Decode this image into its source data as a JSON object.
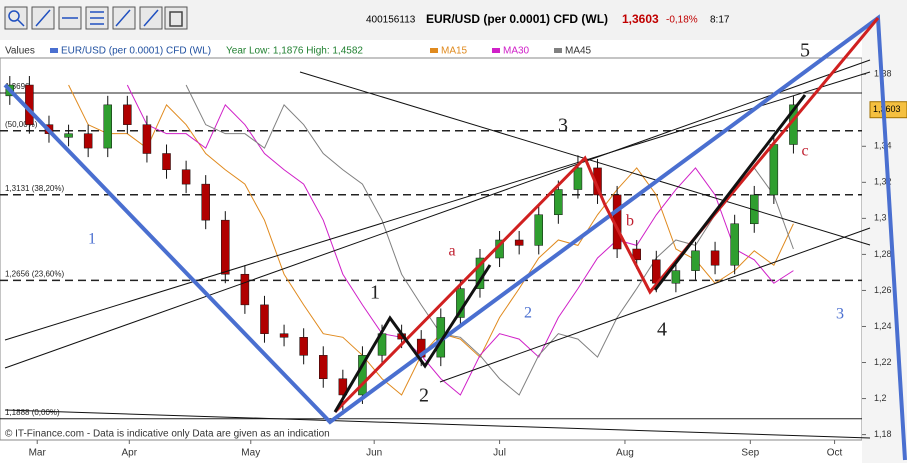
{
  "header": {
    "id": "400156113",
    "instrument": "EUR/USD (per 0.0001) CFD (WL)",
    "price": "1,3603",
    "change": "-0,18%",
    "time": "8:17"
  },
  "chart_data": {
    "type": "candlestick",
    "legend_title": "Values",
    "name": "EUR/USD (per 0.0001) CFD (WL)",
    "year_range": "Year Low: 1,1876 High: 1,4582",
    "footer": "© IT-Finance.com - Data is indicative only Data are given as an indication",
    "up_color": "#2f9e2f",
    "down_color": "#b00000",
    "open": [
      1.368,
      1.374,
      1.352,
      1.345,
      1.347,
      1.339,
      1.363,
      1.352,
      1.336,
      1.327,
      1.319,
      1.299,
      1.269,
      1.252,
      1.236,
      1.234,
      1.224,
      1.211,
      1.202,
      1.224,
      1.236,
      1.233,
      1.223,
      1.245,
      1.261,
      1.278,
      1.288,
      1.285,
      1.302,
      1.316,
      1.328,
      1.313,
      1.283,
      1.277,
      1.264,
      1.271,
      1.282,
      1.274,
      1.297,
      1.313,
      1.341
    ],
    "high": [
      1.379,
      1.379,
      1.357,
      1.352,
      1.352,
      1.368,
      1.368,
      1.357,
      1.341,
      1.332,
      1.324,
      1.304,
      1.274,
      1.257,
      1.241,
      1.239,
      1.229,
      1.216,
      1.229,
      1.241,
      1.241,
      1.238,
      1.25,
      1.266,
      1.283,
      1.293,
      1.293,
      1.307,
      1.321,
      1.335,
      1.333,
      1.318,
      1.288,
      1.282,
      1.276,
      1.287,
      1.287,
      1.302,
      1.318,
      1.346,
      1.368
    ],
    "low": [
      1.363,
      1.347,
      1.342,
      1.34,
      1.334,
      1.334,
      1.347,
      1.331,
      1.322,
      1.314,
      1.294,
      1.264,
      1.247,
      1.231,
      1.229,
      1.219,
      1.206,
      1.191,
      1.197,
      1.219,
      1.228,
      1.218,
      1.218,
      1.24,
      1.256,
      1.273,
      1.28,
      1.28,
      1.297,
      1.311,
      1.308,
      1.278,
      1.272,
      1.259,
      1.259,
      1.266,
      1.269,
      1.269,
      1.292,
      1.308,
      1.336
    ],
    "close": [
      1.374,
      1.352,
      1.347,
      1.347,
      1.339,
      1.363,
      1.352,
      1.336,
      1.327,
      1.319,
      1.299,
      1.269,
      1.252,
      1.236,
      1.234,
      1.224,
      1.211,
      1.202,
      1.224,
      1.236,
      1.233,
      1.223,
      1.245,
      1.261,
      1.278,
      1.288,
      1.285,
      1.302,
      1.316,
      1.328,
      1.313,
      1.283,
      1.277,
      1.264,
      1.271,
      1.282,
      1.274,
      1.297,
      1.313,
      1.341,
      1.363
    ],
    "series": [
      {
        "name": "MA15",
        "color": "#e08a1e",
        "values": [
          null,
          null,
          null,
          1.374,
          1.352,
          1.347,
          1.347,
          1.339,
          1.363,
          1.352,
          1.336,
          1.327,
          1.319,
          1.299,
          1.269,
          1.252,
          1.236,
          1.234,
          1.224,
          1.211,
          1.202,
          1.224,
          1.236,
          1.233,
          1.223,
          1.245,
          1.261,
          1.278,
          1.288,
          1.285,
          1.302,
          1.316,
          1.328,
          1.313,
          1.283,
          1.277,
          1.264,
          1.271,
          1.282,
          1.274,
          1.297
        ]
      },
      {
        "name": "MA30",
        "color": "#d020c8",
        "values": [
          null,
          null,
          null,
          null,
          null,
          null,
          1.374,
          1.352,
          1.347,
          1.347,
          1.339,
          1.363,
          1.352,
          1.336,
          1.327,
          1.319,
          1.299,
          1.269,
          1.252,
          1.236,
          1.234,
          1.224,
          1.211,
          1.202,
          1.224,
          1.236,
          1.233,
          1.223,
          1.245,
          1.261,
          1.278,
          1.288,
          1.285,
          1.302,
          1.316,
          1.328,
          1.313,
          1.283,
          1.277,
          1.264,
          1.271
        ]
      },
      {
        "name": "MA45",
        "color": "#808080",
        "values": [
          null,
          null,
          null,
          null,
          null,
          null,
          null,
          null,
          null,
          1.374,
          1.352,
          1.347,
          1.347,
          1.339,
          1.363,
          1.352,
          1.336,
          1.327,
          1.319,
          1.299,
          1.269,
          1.252,
          1.236,
          1.234,
          1.224,
          1.211,
          1.202,
          1.224,
          1.236,
          1.233,
          1.223,
          1.245,
          1.261,
          1.278,
          1.288,
          1.285,
          1.302,
          1.316,
          1.328,
          1.313,
          1.283
        ]
      }
    ],
    "xlim": [
      -0.5,
      43.5
    ],
    "xticks": [
      {
        "value": 1.4,
        "label": "Mar"
      },
      {
        "value": 6.1,
        "label": "Apr"
      },
      {
        "value": 12.3,
        "label": "May"
      },
      {
        "value": 18.6,
        "label": "Jun"
      },
      {
        "value": 25,
        "label": "Jul"
      },
      {
        "value": 31.4,
        "label": "Aug"
      },
      {
        "value": 37.8,
        "label": "Sep"
      },
      {
        "value": 42.1,
        "label": "Oct"
      }
    ],
    "ylim": [
      1.177,
      1.389
    ],
    "yticks": [
      {
        "value": 1.38,
        "label": "1,38"
      },
      {
        "value": 1.34,
        "label": "1,34"
      },
      {
        "value": 1.32,
        "label": "1,32"
      },
      {
        "value": 1.3,
        "label": "1,3"
      },
      {
        "value": 1.28,
        "label": "1,28"
      },
      {
        "value": 1.26,
        "label": "1,26"
      },
      {
        "value": 1.24,
        "label": "1,24"
      },
      {
        "value": 1.22,
        "label": "1,22"
      },
      {
        "value": 1.2,
        "label": "1,2"
      },
      {
        "value": 1.18,
        "label": "1,18"
      }
    ],
    "last": {
      "value": 1.3603,
      "label": "1,3603"
    },
    "levels": [
      {
        "value": 1.3696,
        "label": "1,3696",
        "dashed": false
      },
      {
        "value": 1.3486,
        "label": "(50,00%)",
        "dashed": true
      },
      {
        "value": 1.3131,
        "label": "1,3131 (38,20%)",
        "dashed": true
      },
      {
        "value": 1.2656,
        "label": "1,2656 (23,60%)",
        "dashed": true
      },
      {
        "value": 1.1888,
        "label": "1,1888 (0,00%)",
        "dashed": false
      }
    ],
    "annotations": [
      {
        "text": "1",
        "color": "#222222"
      },
      {
        "text": "2",
        "color": "#222222"
      },
      {
        "text": "3",
        "color": "#222222"
      },
      {
        "text": "4",
        "color": "#222222"
      },
      {
        "text": "5",
        "color": "#222222"
      },
      {
        "text": "1",
        "color": "#4a6fd0"
      },
      {
        "text": "2",
        "color": "#4a6fd0"
      },
      {
        "text": "3",
        "color": "#4a6fd0"
      },
      {
        "text": "a",
        "color": "#c02030"
      },
      {
        "text": "b",
        "color": "#c02030"
      },
      {
        "text": "c",
        "color": "#c02030"
      }
    ]
  }
}
